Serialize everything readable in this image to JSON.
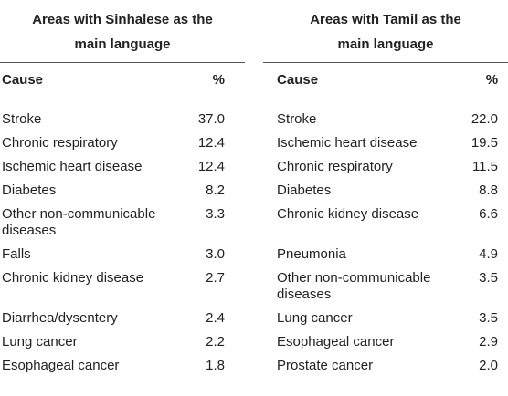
{
  "table": {
    "groups": [
      {
        "title_lines": [
          "Areas with Sinhalese as the",
          "main language"
        ],
        "columns": [
          "Cause",
          "%"
        ],
        "rows": [
          [
            "Stroke",
            "37.0"
          ],
          [
            "Chronic respiratory",
            "12.4"
          ],
          [
            "Ischemic heart disease",
            "12.4"
          ],
          [
            "Diabetes",
            "8.2"
          ],
          [
            "Other non-communicable diseases",
            "3.3"
          ],
          [
            "Falls",
            "3.0"
          ],
          [
            "Chronic kidney disease",
            "2.7"
          ],
          [
            "Diarrhea/dysentery",
            "2.4"
          ],
          [
            "Lung cancer",
            "2.2"
          ],
          [
            "Esophageal cancer",
            "1.8"
          ]
        ]
      },
      {
        "title_lines": [
          "Areas with Tamil as the",
          "main language"
        ],
        "columns": [
          "Cause",
          "%"
        ],
        "rows": [
          [
            "Stroke",
            "22.0"
          ],
          [
            "Ischemic heart disease",
            "19.5"
          ],
          [
            "Chronic respiratory",
            "11.5"
          ],
          [
            "Diabetes",
            "8.8"
          ],
          [
            "Chronic kidney disease",
            "6.6"
          ],
          [
            "Pneumonia",
            "4.9"
          ],
          [
            "Other non-communicable diseases",
            "3.5"
          ],
          [
            "Lung cancer",
            "3.5"
          ],
          [
            "Esophageal cancer",
            "2.9"
          ],
          [
            "Prostate cancer",
            "2.0"
          ]
        ]
      }
    ]
  }
}
